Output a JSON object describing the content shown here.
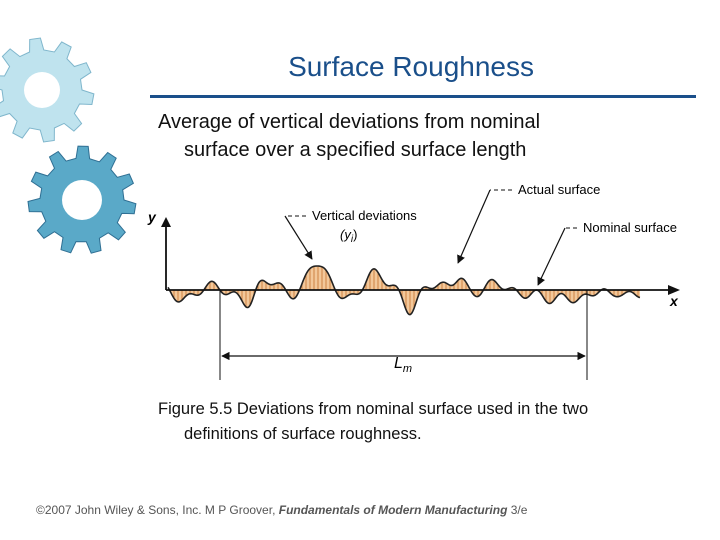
{
  "slide": {
    "title": "Surface Roughness",
    "subtitle_line1": "Average of vertical deviations from nominal",
    "subtitle_line2": "surface over a specified surface length"
  },
  "figure": {
    "axis_y_label": "y",
    "axis_x_label": "x",
    "label_actual_surface": "Actual surface",
    "label_vertical_deviations": "Vertical deviations",
    "label_yi_base": "(y",
    "label_yi_sub": "i",
    "label_yi_close": ")",
    "label_nominal_surface": "Nominal surface",
    "label_length_base": "L",
    "label_length_sub": "m",
    "caption_line1": "Figure 5.5  Deviations from nominal surface used in the two",
    "caption_line2": "definitions of surface roughness."
  },
  "footer": {
    "prefix": "©2007 John Wiley & Sons, Inc.  M P Groover, ",
    "book": "Fundamentals of Modern Manufacturing",
    "suffix": " 3/e"
  },
  "colors": {
    "title": "#1a4f8a",
    "hatch_fill": "#f3c89a",
    "hatch_line": "#c87a3a",
    "gear_fill": "#5aa9c8",
    "gear_edge": "#2f6f93"
  }
}
